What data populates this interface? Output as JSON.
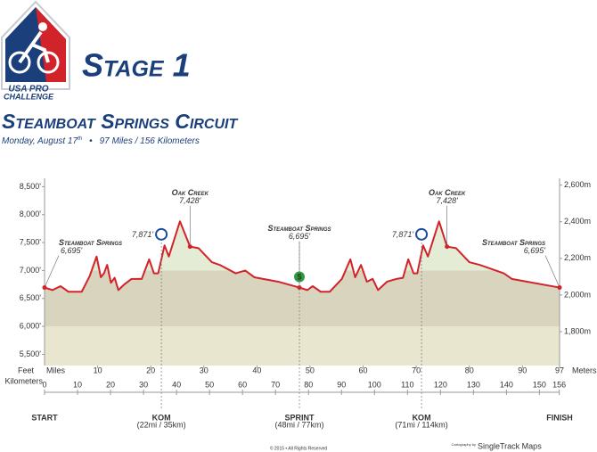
{
  "header": {
    "logo": [
      "USA PRO",
      "CHALLENGE"
    ],
    "stage": "Stage 1",
    "title": "Steamboat Springs Circuit",
    "date": "Monday, August 17",
    "date_suffix": "th",
    "distance": "97 Miles / 156 Kilometers"
  },
  "chart_data": {
    "type": "area",
    "color": "#d2232a",
    "x": [
      0,
      1.5,
      3,
      4.5,
      7,
      8.5,
      9.8,
      10.6,
      11.2,
      11.8,
      12.5,
      13.2,
      13.9,
      15,
      16.4,
      18.3,
      19.7,
      20.6,
      21.4,
      22.6,
      23.4,
      25.5,
      27.4,
      29,
      31.5,
      33,
      36,
      37.8,
      39.5,
      44,
      48,
      49.5,
      50.5,
      52,
      53.7,
      56,
      57.6,
      58.5,
      59.6,
      60.7,
      61.8,
      62.8,
      64.5,
      66.3,
      67.5,
      68.5,
      69.5,
      70.2,
      71.3,
      72.2,
      74.3,
      75.8,
      77.5,
      80,
      82,
      85,
      86.5,
      88,
      97
    ],
    "values": [
      6695,
      6650,
      6720,
      6620,
      6620,
      6900,
      7250,
      6880,
      6950,
      7100,
      6780,
      6870,
      6650,
      6750,
      6850,
      6850,
      7200,
      6950,
      6950,
      7450,
      7250,
      7880,
      7428,
      7400,
      7150,
      7100,
      6950,
      7000,
      6880,
      6800,
      6695,
      6650,
      6720,
      6620,
      6620,
      6850,
      7200,
      6880,
      7100,
      6800,
      6850,
      6650,
      6800,
      6850,
      6870,
      7200,
      6950,
      6950,
      7450,
      7250,
      7880,
      7428,
      7400,
      7150,
      7100,
      7000,
      6950,
      6850,
      6695
    ],
    "fill_bands": [
      {
        "from": 7000,
        "color": "#e4ecd6"
      },
      {
        "from": 6000,
        "color": "#d8d4bd"
      },
      {
        "from": 5300,
        "color": "#e8e6cf"
      }
    ],
    "xlim": [
      0,
      97
    ],
    "xticks": [
      10,
      20,
      30,
      40,
      50,
      60,
      70,
      80,
      90,
      97
    ],
    "x_label": "Miles",
    "x2lim": [
      0,
      156.1
    ],
    "x2ticks": [
      0,
      10,
      20,
      30,
      40,
      50,
      60,
      70,
      80,
      90,
      100,
      110,
      120,
      130,
      140,
      150,
      156
    ],
    "x2_label": "Kilometers",
    "ylim": [
      5300,
      8650
    ],
    "y_label": "Feet",
    "yticks": [
      {
        "value": 5500,
        "label": "5,500'"
      },
      {
        "value": 6000,
        "label": "6,000'"
      },
      {
        "value": 6500,
        "label": "6,500'"
      },
      {
        "value": 7000,
        "label": "7,000'"
      },
      {
        "value": 7500,
        "label": "7,500'"
      },
      {
        "value": 8000,
        "label": "8,000'"
      },
      {
        "value": 8500,
        "label": "8,500'"
      }
    ],
    "y2lim": [
      1615,
      2637
    ],
    "y2_label": "Meters",
    "y2ticks": [
      {
        "value": 1800,
        "label": "1,800m"
      },
      {
        "value": 2000,
        "label": "2,000m"
      },
      {
        "value": 2200,
        "label": "2,200m"
      },
      {
        "value": 2400,
        "label": "2,400m"
      },
      {
        "value": 2600,
        "label": "2,600m"
      }
    ],
    "annotations": [
      {
        "text": "Steamboat Springs",
        "label": "6,695'",
        "x": 0,
        "y": 6695,
        "anchor": "start"
      },
      {
        "text": "Oak Creek",
        "label": "7,428'",
        "x": 27.4,
        "y": 7428,
        "anchor": "middle"
      },
      {
        "text": "Steamboat Springs",
        "label": "6,695'",
        "x": 48,
        "y": 6695,
        "anchor": "middle"
      },
      {
        "text": "Oak Creek",
        "label": "7,428'",
        "x": 75.8,
        "y": 7428,
        "anchor": "middle"
      },
      {
        "text": "Steamboat Springs",
        "label": "6,695'",
        "x": 97,
        "y": 6695,
        "anchor": "end"
      }
    ],
    "markers": [
      {
        "text": "START",
        "x": 0,
        "color": "#2e9a3f"
      },
      {
        "text": "KOM",
        "detail": "(22mi / 35km)",
        "x": 22,
        "color": "#1b4f9c",
        "elevation": {
          "value": 7871,
          "label": "7,871'"
        }
      },
      {
        "text": "SPRINT",
        "detail": "(48mi / 77km)",
        "x": 48,
        "color": "#2e9a3f",
        "icon": "$"
      },
      {
        "text": "KOM",
        "detail": "(71mi / 114km)",
        "x": 71,
        "color": "#1b4f9c",
        "elevation": {
          "value": 7871,
          "label": "7,871'"
        }
      },
      {
        "text": "FINISH",
        "x": 97,
        "color": "#d2232a"
      }
    ]
  },
  "footer": {
    "copyright": "© 2015 • All Rights Reserved",
    "credit_prefix": "Cartography by",
    "credit": "SingleTrack Maps"
  }
}
